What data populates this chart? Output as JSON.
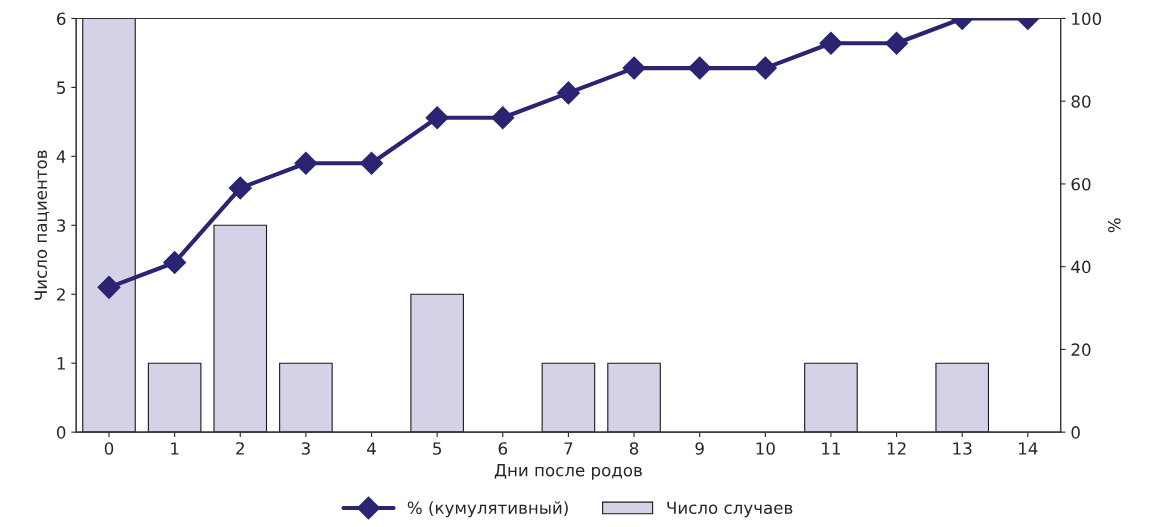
{
  "chart_data": {
    "type": "bar",
    "xlabel": "Дни после родов",
    "ylabel": "Число пациентов",
    "y2label": "%",
    "categories": [
      "0",
      "1",
      "2",
      "3",
      "4",
      "5",
      "6",
      "7",
      "8",
      "9",
      "10",
      "11",
      "12",
      "13",
      "14"
    ],
    "series": [
      {
        "name": "% (кумулятивный)",
        "type": "line",
        "axis": "y2",
        "color": "#2b2473",
        "marker": "diamond",
        "line_style": "solid",
        "values": [
          35,
          41,
          59,
          65,
          65,
          76,
          76,
          82,
          88,
          88,
          88,
          94,
          94,
          100,
          100
        ]
      },
      {
        "name": "Число случаев",
        "color": "#d5d2e8",
        "values": [
          6,
          1,
          3,
          1,
          0,
          2,
          0,
          1,
          1,
          0,
          0,
          1,
          0,
          1,
          0
        ]
      }
    ],
    "ylim": [
      0,
      6
    ],
    "yticks": [
      0,
      1,
      2,
      3,
      4,
      5,
      6
    ],
    "y2lim": [
      0,
      100
    ],
    "y2ticks": [
      0,
      20,
      40,
      60,
      80,
      100
    ],
    "grid": false,
    "legend": "bottom"
  }
}
